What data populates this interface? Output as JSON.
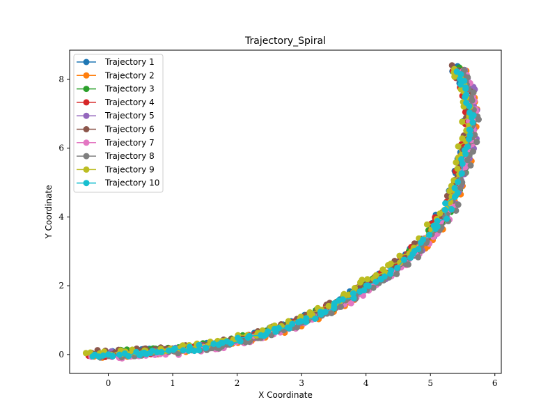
{
  "chart_data": {
    "type": "line",
    "title": "Trajectory_Spiral",
    "xlabel": "X Coordinate",
    "ylabel": "Y Coordinate",
    "xlim": [
      -0.6,
      6.1
    ],
    "ylim": [
      -0.55,
      8.85
    ],
    "xticks": [
      0,
      1,
      2,
      3,
      4,
      5,
      6
    ],
    "yticks": [
      0,
      2,
      4,
      6,
      8
    ],
    "xtick_labels": [
      "0",
      "1",
      "2",
      "3",
      "4",
      "5",
      "6"
    ],
    "ytick_labels": [
      "0",
      "2",
      "4",
      "6",
      "8"
    ],
    "grid": false,
    "legend_position": "upper-left",
    "base_path": {
      "x": [
        -0.25,
        0.0,
        0.25,
        0.5,
        0.75,
        1.0,
        1.25,
        1.5,
        1.75,
        2.0,
        2.25,
        2.5,
        2.75,
        3.0,
        3.25,
        3.5,
        3.75,
        4.0,
        4.25,
        4.5,
        4.75,
        5.0,
        5.15,
        5.3,
        5.4,
        5.5,
        5.58,
        5.62,
        5.62,
        5.58,
        5.5,
        5.42
      ],
      "y": [
        0.0,
        0.0,
        0.02,
        0.05,
        0.08,
        0.12,
        0.17,
        0.23,
        0.31,
        0.4,
        0.52,
        0.65,
        0.8,
        0.97,
        1.17,
        1.4,
        1.67,
        2.0,
        2.25,
        2.6,
        3.0,
        3.5,
        3.9,
        4.4,
        4.9,
        5.5,
        6.1,
        6.6,
        7.1,
        7.6,
        8.0,
        8.3
      ]
    },
    "series": [
      {
        "name": "Trajectory 1",
        "color": "#1f77b4",
        "offset_x": -0.04,
        "offset_y": 0.03
      },
      {
        "name": "Trajectory 2",
        "color": "#ff7f0e",
        "offset_x": 0.05,
        "offset_y": -0.04
      },
      {
        "name": "Trajectory 3",
        "color": "#2ca02c",
        "offset_x": 0.03,
        "offset_y": 0.05
      },
      {
        "name": "Trajectory 4",
        "color": "#d62728",
        "offset_x": -0.05,
        "offset_y": -0.02
      },
      {
        "name": "Trajectory 5",
        "color": "#9467bd",
        "offset_x": 0.06,
        "offset_y": 0.02
      },
      {
        "name": "Trajectory 6",
        "color": "#8c564b",
        "offset_x": -0.02,
        "offset_y": 0.06
      },
      {
        "name": "Trajectory 7",
        "color": "#e377c2",
        "offset_x": 0.04,
        "offset_y": -0.06
      },
      {
        "name": "Trajectory 8",
        "color": "#7f7f7f",
        "offset_x": 0.07,
        "offset_y": -0.03
      },
      {
        "name": "Trajectory 9",
        "color": "#bcbd22",
        "offset_x": -0.06,
        "offset_y": 0.04
      },
      {
        "name": "Trajectory 10",
        "color": "#17becf",
        "offset_x": 0.0,
        "offset_y": -0.01
      }
    ]
  }
}
